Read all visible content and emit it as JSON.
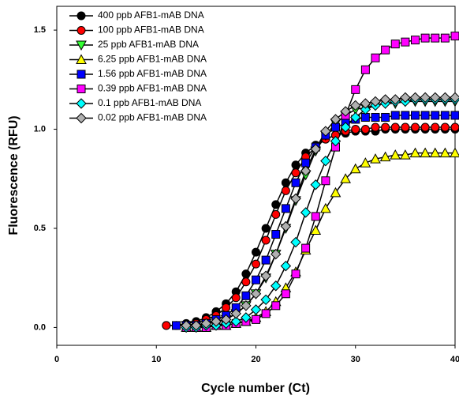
{
  "chart_data": {
    "type": "line",
    "x_label": "Cycle number (Ct)",
    "y_label": "Fluorescence (RFU)",
    "xlim": [
      0,
      40
    ],
    "ylim": [
      -0.09,
      1.62
    ],
    "xticks": [
      0,
      10,
      20,
      30,
      40
    ],
    "yticks": [
      {
        "value": 0,
        "label": "0.0"
      },
      0.5,
      {
        "value": 1,
        "label": "1.0"
      },
      1.5
    ],
    "legend_position": "upper-left",
    "line_color": "#000000",
    "series": [
      {
        "name": "400 ppb AFB1-mAB DNA",
        "color": "#000000",
        "marker": "circle",
        "x": [
          11,
          12,
          13,
          14,
          15,
          16,
          17,
          18,
          19,
          20,
          21,
          22,
          23,
          24,
          25,
          26,
          27,
          28,
          29,
          30,
          31,
          32,
          33,
          34,
          35,
          36,
          37,
          38,
          39,
          40
        ],
        "values": [
          0.01,
          0.01,
          0.02,
          0.03,
          0.05,
          0.08,
          0.12,
          0.18,
          0.27,
          0.38,
          0.5,
          0.62,
          0.73,
          0.82,
          0.88,
          0.92,
          0.95,
          0.97,
          0.98,
          0.99,
          0.99,
          0.99,
          1.0,
          1.0,
          1.0,
          1.0,
          1.0,
          1.0,
          1.0,
          1.0
        ]
      },
      {
        "name": "100 ppb AFB1-mAB DNA",
        "color": "#ff0000",
        "marker": "circle",
        "x": [
          11,
          12,
          13,
          14,
          15,
          16,
          17,
          18,
          19,
          20,
          21,
          22,
          23,
          24,
          25,
          26,
          27,
          28,
          29,
          30,
          31,
          32,
          33,
          34,
          35,
          36,
          37,
          38,
          39,
          40
        ],
        "values": [
          0.01,
          0.01,
          0.01,
          0.02,
          0.04,
          0.06,
          0.1,
          0.15,
          0.23,
          0.32,
          0.44,
          0.57,
          0.69,
          0.78,
          0.86,
          0.91,
          0.95,
          0.97,
          0.99,
          1.0,
          1.0,
          1.01,
          1.01,
          1.01,
          1.01,
          1.01,
          1.01,
          1.01,
          1.01,
          1.01
        ]
      },
      {
        "name": "25 ppb AFB1-mAB DNA",
        "color": "#33ff33",
        "marker": "triangle-down",
        "x": [
          13,
          14,
          15,
          16,
          17,
          18,
          19,
          20,
          21,
          22,
          23,
          24,
          25,
          26,
          27,
          28,
          29,
          30,
          31,
          32,
          33,
          34,
          35,
          36,
          37,
          38,
          39,
          40
        ],
        "values": [
          0.01,
          0.01,
          0.02,
          0.03,
          0.04,
          0.07,
          0.11,
          0.17,
          0.25,
          0.37,
          0.5,
          0.64,
          0.77,
          0.89,
          0.97,
          1.03,
          1.07,
          1.1,
          1.11,
          1.12,
          1.13,
          1.13,
          1.14,
          1.14,
          1.14,
          1.14,
          1.14,
          1.14
        ]
      },
      {
        "name": "6.25 ppb AFB1-mAB DNA",
        "color": "#ffff00",
        "marker": "triangle-up",
        "x": [
          13,
          14,
          15,
          16,
          17,
          18,
          19,
          20,
          21,
          22,
          23,
          24,
          25,
          26,
          27,
          28,
          29,
          30,
          31,
          32,
          33,
          34,
          35,
          36,
          37,
          38,
          39,
          40
        ],
        "values": [
          0,
          0,
          0,
          0.01,
          0.01,
          0.02,
          0.03,
          0.05,
          0.08,
          0.13,
          0.2,
          0.28,
          0.39,
          0.49,
          0.6,
          0.68,
          0.75,
          0.8,
          0.83,
          0.85,
          0.86,
          0.87,
          0.87,
          0.88,
          0.88,
          0.88,
          0.88,
          0.88
        ]
      },
      {
        "name": "1.56 ppb AFB1-mAB DNA",
        "color": "#0000ff",
        "marker": "square",
        "x": [
          12,
          13,
          14,
          15,
          16,
          17,
          18,
          19,
          20,
          21,
          22,
          23,
          24,
          25,
          26,
          27,
          28,
          29,
          30,
          31,
          32,
          33,
          34,
          35,
          36,
          37,
          38,
          39,
          40
        ],
        "values": [
          0.01,
          0.01,
          0.01,
          0.02,
          0.04,
          0.06,
          0.1,
          0.16,
          0.24,
          0.34,
          0.47,
          0.6,
          0.73,
          0.83,
          0.91,
          0.97,
          1.01,
          1.03,
          1.05,
          1.06,
          1.06,
          1.06,
          1.07,
          1.07,
          1.07,
          1.07,
          1.07,
          1.07,
          1.07
        ]
      },
      {
        "name": "0.39 ppb AFB1-mAB DNA",
        "color": "#ff00ff",
        "marker": "square",
        "x": [
          13,
          14,
          15,
          16,
          17,
          18,
          19,
          20,
          21,
          22,
          23,
          24,
          25,
          26,
          27,
          28,
          29,
          30,
          31,
          32,
          33,
          34,
          35,
          36,
          37,
          38,
          39,
          40
        ],
        "values": [
          0,
          0,
          0,
          0.01,
          0.01,
          0.02,
          0.03,
          0.04,
          0.07,
          0.11,
          0.17,
          0.27,
          0.4,
          0.56,
          0.74,
          0.91,
          1.07,
          1.2,
          1.3,
          1.36,
          1.4,
          1.43,
          1.44,
          1.45,
          1.46,
          1.46,
          1.46,
          1.47
        ]
      },
      {
        "name": "0.1 ppb AFB1-mAB DNA",
        "color": "#00ffff",
        "marker": "diamond",
        "x": [
          13,
          14,
          15,
          16,
          17,
          18,
          19,
          20,
          21,
          22,
          23,
          24,
          25,
          26,
          27,
          28,
          29,
          30,
          31,
          32,
          33,
          34,
          35,
          36,
          37,
          38,
          39,
          40
        ],
        "values": [
          0,
          0,
          0.01,
          0.01,
          0.02,
          0.03,
          0.05,
          0.09,
          0.14,
          0.21,
          0.31,
          0.43,
          0.58,
          0.72,
          0.84,
          0.94,
          1.01,
          1.06,
          1.1,
          1.12,
          1.13,
          1.14,
          1.14,
          1.15,
          1.15,
          1.15,
          1.15,
          1.15
        ]
      },
      {
        "name": "0.02 ppb AFB1-mAB DNA",
        "color": "#b0b0b0",
        "marker": "diamond",
        "x": [
          13,
          14,
          15,
          16,
          17,
          18,
          19,
          20,
          21,
          22,
          23,
          24,
          25,
          26,
          27,
          28,
          29,
          30,
          31,
          32,
          33,
          34,
          35,
          36,
          37,
          38,
          39,
          40
        ],
        "values": [
          0.01,
          0.01,
          0.02,
          0.03,
          0.04,
          0.07,
          0.11,
          0.17,
          0.26,
          0.37,
          0.51,
          0.65,
          0.79,
          0.9,
          0.99,
          1.05,
          1.09,
          1.12,
          1.13,
          1.14,
          1.15,
          1.15,
          1.16,
          1.16,
          1.16,
          1.16,
          1.16,
          1.16
        ]
      }
    ]
  }
}
